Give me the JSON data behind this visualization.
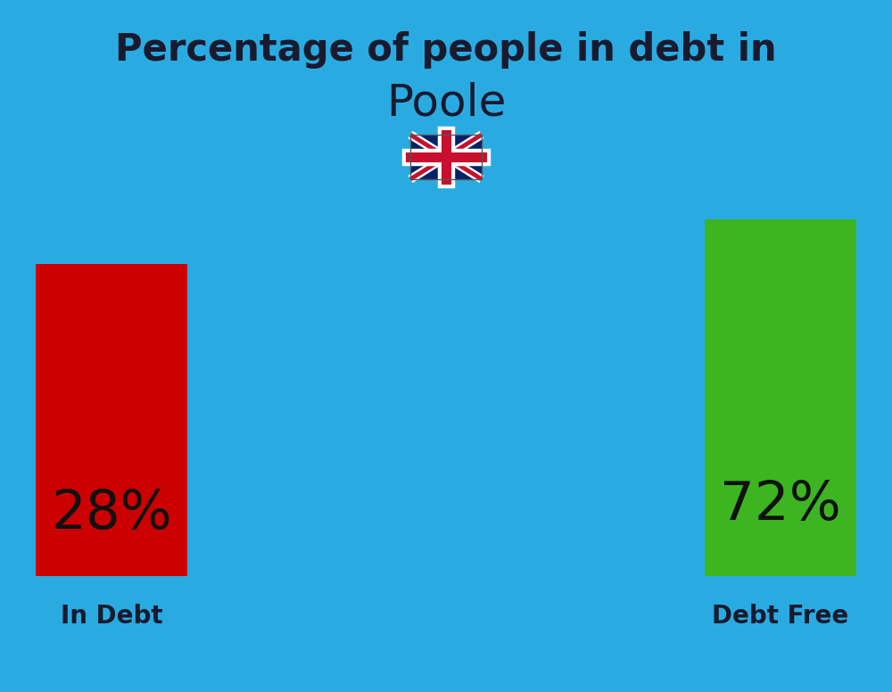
{
  "title_line1": "Percentage of people in debt in",
  "title_line2": "Poole",
  "background_color": "#29ABE2",
  "bar_left_label": "28%",
  "bar_left_color": "#CC0000",
  "bar_left_caption": "In Debt",
  "bar_right_label": "72%",
  "bar_right_color": "#3CB521",
  "bar_right_caption": "Debt Free",
  "title_fontsize": 30,
  "subtitle_fontsize": 36,
  "bar_label_fontsize": 44,
  "caption_fontsize": 20,
  "title_color": "#1a1a2e",
  "label_color": "#111111",
  "caption_color": "#1a1a2e",
  "flag_colors": {
    "blue": "#012169",
    "red": "#C8102E",
    "white": "#FFFFFF"
  }
}
